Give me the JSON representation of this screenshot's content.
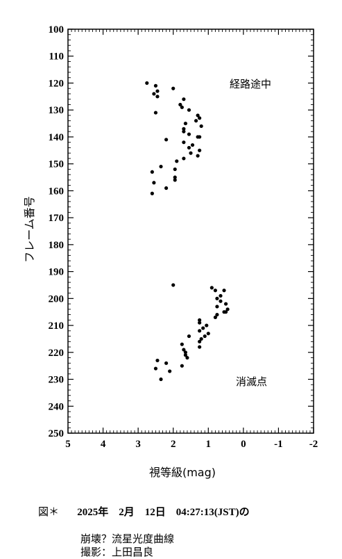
{
  "chart_data": {
    "type": "scatter",
    "xlabel": "視等級(mag)",
    "ylabel": "フレーム番号",
    "xlim": [
      5,
      -2
    ],
    "ylim": [
      250,
      100
    ],
    "x_ticks": [
      "5",
      "4",
      "3",
      "2",
      "1",
      "0",
      "-1",
      "-2"
    ],
    "y_ticks": [
      "100",
      "110",
      "120",
      "130",
      "140",
      "150",
      "160",
      "170",
      "180",
      "190",
      "200",
      "210",
      "220",
      "230",
      "240",
      "250"
    ],
    "x_reversed": true,
    "y_reversed": true,
    "annotations": [
      "経路途中",
      "消滅点"
    ],
    "points": [
      {
        "x": 2.75,
        "y": 120
      },
      {
        "x": 2.5,
        "y": 121
      },
      {
        "x": 2.45,
        "y": 123
      },
      {
        "x": 2.55,
        "y": 124
      },
      {
        "x": 2.45,
        "y": 125
      },
      {
        "x": 2.5,
        "y": 131
      },
      {
        "x": 2.0,
        "y": 122
      },
      {
        "x": 1.7,
        "y": 126
      },
      {
        "x": 1.8,
        "y": 128
      },
      {
        "x": 1.75,
        "y": 129
      },
      {
        "x": 1.55,
        "y": 130
      },
      {
        "x": 1.3,
        "y": 132
      },
      {
        "x": 1.25,
        "y": 133
      },
      {
        "x": 1.35,
        "y": 134
      },
      {
        "x": 1.65,
        "y": 135
      },
      {
        "x": 1.2,
        "y": 136
      },
      {
        "x": 1.7,
        "y": 137
      },
      {
        "x": 1.7,
        "y": 138
      },
      {
        "x": 1.55,
        "y": 139
      },
      {
        "x": 1.3,
        "y": 140
      },
      {
        "x": 1.25,
        "y": 140
      },
      {
        "x": 2.2,
        "y": 141
      },
      {
        "x": 1.7,
        "y": 142
      },
      {
        "x": 1.45,
        "y": 143
      },
      {
        "x": 1.55,
        "y": 144
      },
      {
        "x": 1.25,
        "y": 145
      },
      {
        "x": 1.5,
        "y": 146
      },
      {
        "x": 1.3,
        "y": 147
      },
      {
        "x": 1.7,
        "y": 148
      },
      {
        "x": 1.9,
        "y": 149
      },
      {
        "x": 2.35,
        "y": 151
      },
      {
        "x": 1.95,
        "y": 152
      },
      {
        "x": 2.6,
        "y": 153
      },
      {
        "x": 1.95,
        "y": 155
      },
      {
        "x": 1.95,
        "y": 156
      },
      {
        "x": 2.55,
        "y": 157
      },
      {
        "x": 2.2,
        "y": 159
      },
      {
        "x": 2.6,
        "y": 161
      },
      {
        "x": 2.0,
        "y": 195
      },
      {
        "x": 0.9,
        "y": 196
      },
      {
        "x": 0.8,
        "y": 197
      },
      {
        "x": 0.55,
        "y": 197
      },
      {
        "x": 0.65,
        "y": 199
      },
      {
        "x": 0.75,
        "y": 200
      },
      {
        "x": 0.65,
        "y": 201
      },
      {
        "x": 0.5,
        "y": 202
      },
      {
        "x": 0.75,
        "y": 203
      },
      {
        "x": 0.45,
        "y": 204
      },
      {
        "x": 0.5,
        "y": 205
      },
      {
        "x": 0.55,
        "y": 205
      },
      {
        "x": 0.75,
        "y": 206
      },
      {
        "x": 0.8,
        "y": 207
      },
      {
        "x": 1.25,
        "y": 208
      },
      {
        "x": 1.25,
        "y": 209
      },
      {
        "x": 1.05,
        "y": 210
      },
      {
        "x": 1.15,
        "y": 211
      },
      {
        "x": 1.25,
        "y": 212
      },
      {
        "x": 1.0,
        "y": 213
      },
      {
        "x": 1.1,
        "y": 214
      },
      {
        "x": 1.55,
        "y": 214
      },
      {
        "x": 1.2,
        "y": 215
      },
      {
        "x": 1.25,
        "y": 216
      },
      {
        "x": 1.75,
        "y": 217
      },
      {
        "x": 1.25,
        "y": 218
      },
      {
        "x": 1.7,
        "y": 219
      },
      {
        "x": 1.65,
        "y": 220
      },
      {
        "x": 1.65,
        "y": 221
      },
      {
        "x": 1.6,
        "y": 222
      },
      {
        "x": 2.45,
        "y": 223
      },
      {
        "x": 2.2,
        "y": 224
      },
      {
        "x": 1.75,
        "y": 225
      },
      {
        "x": 2.5,
        "y": 226
      },
      {
        "x": 2.1,
        "y": 227
      },
      {
        "x": 2.35,
        "y": 230
      }
    ]
  },
  "caption": {
    "label": "図＊",
    "date": "2025年　2月　12日　04:27:13(JST)の",
    "line2": "崩壊？流星光度曲線",
    "line3": "撮影：上田昌良"
  }
}
